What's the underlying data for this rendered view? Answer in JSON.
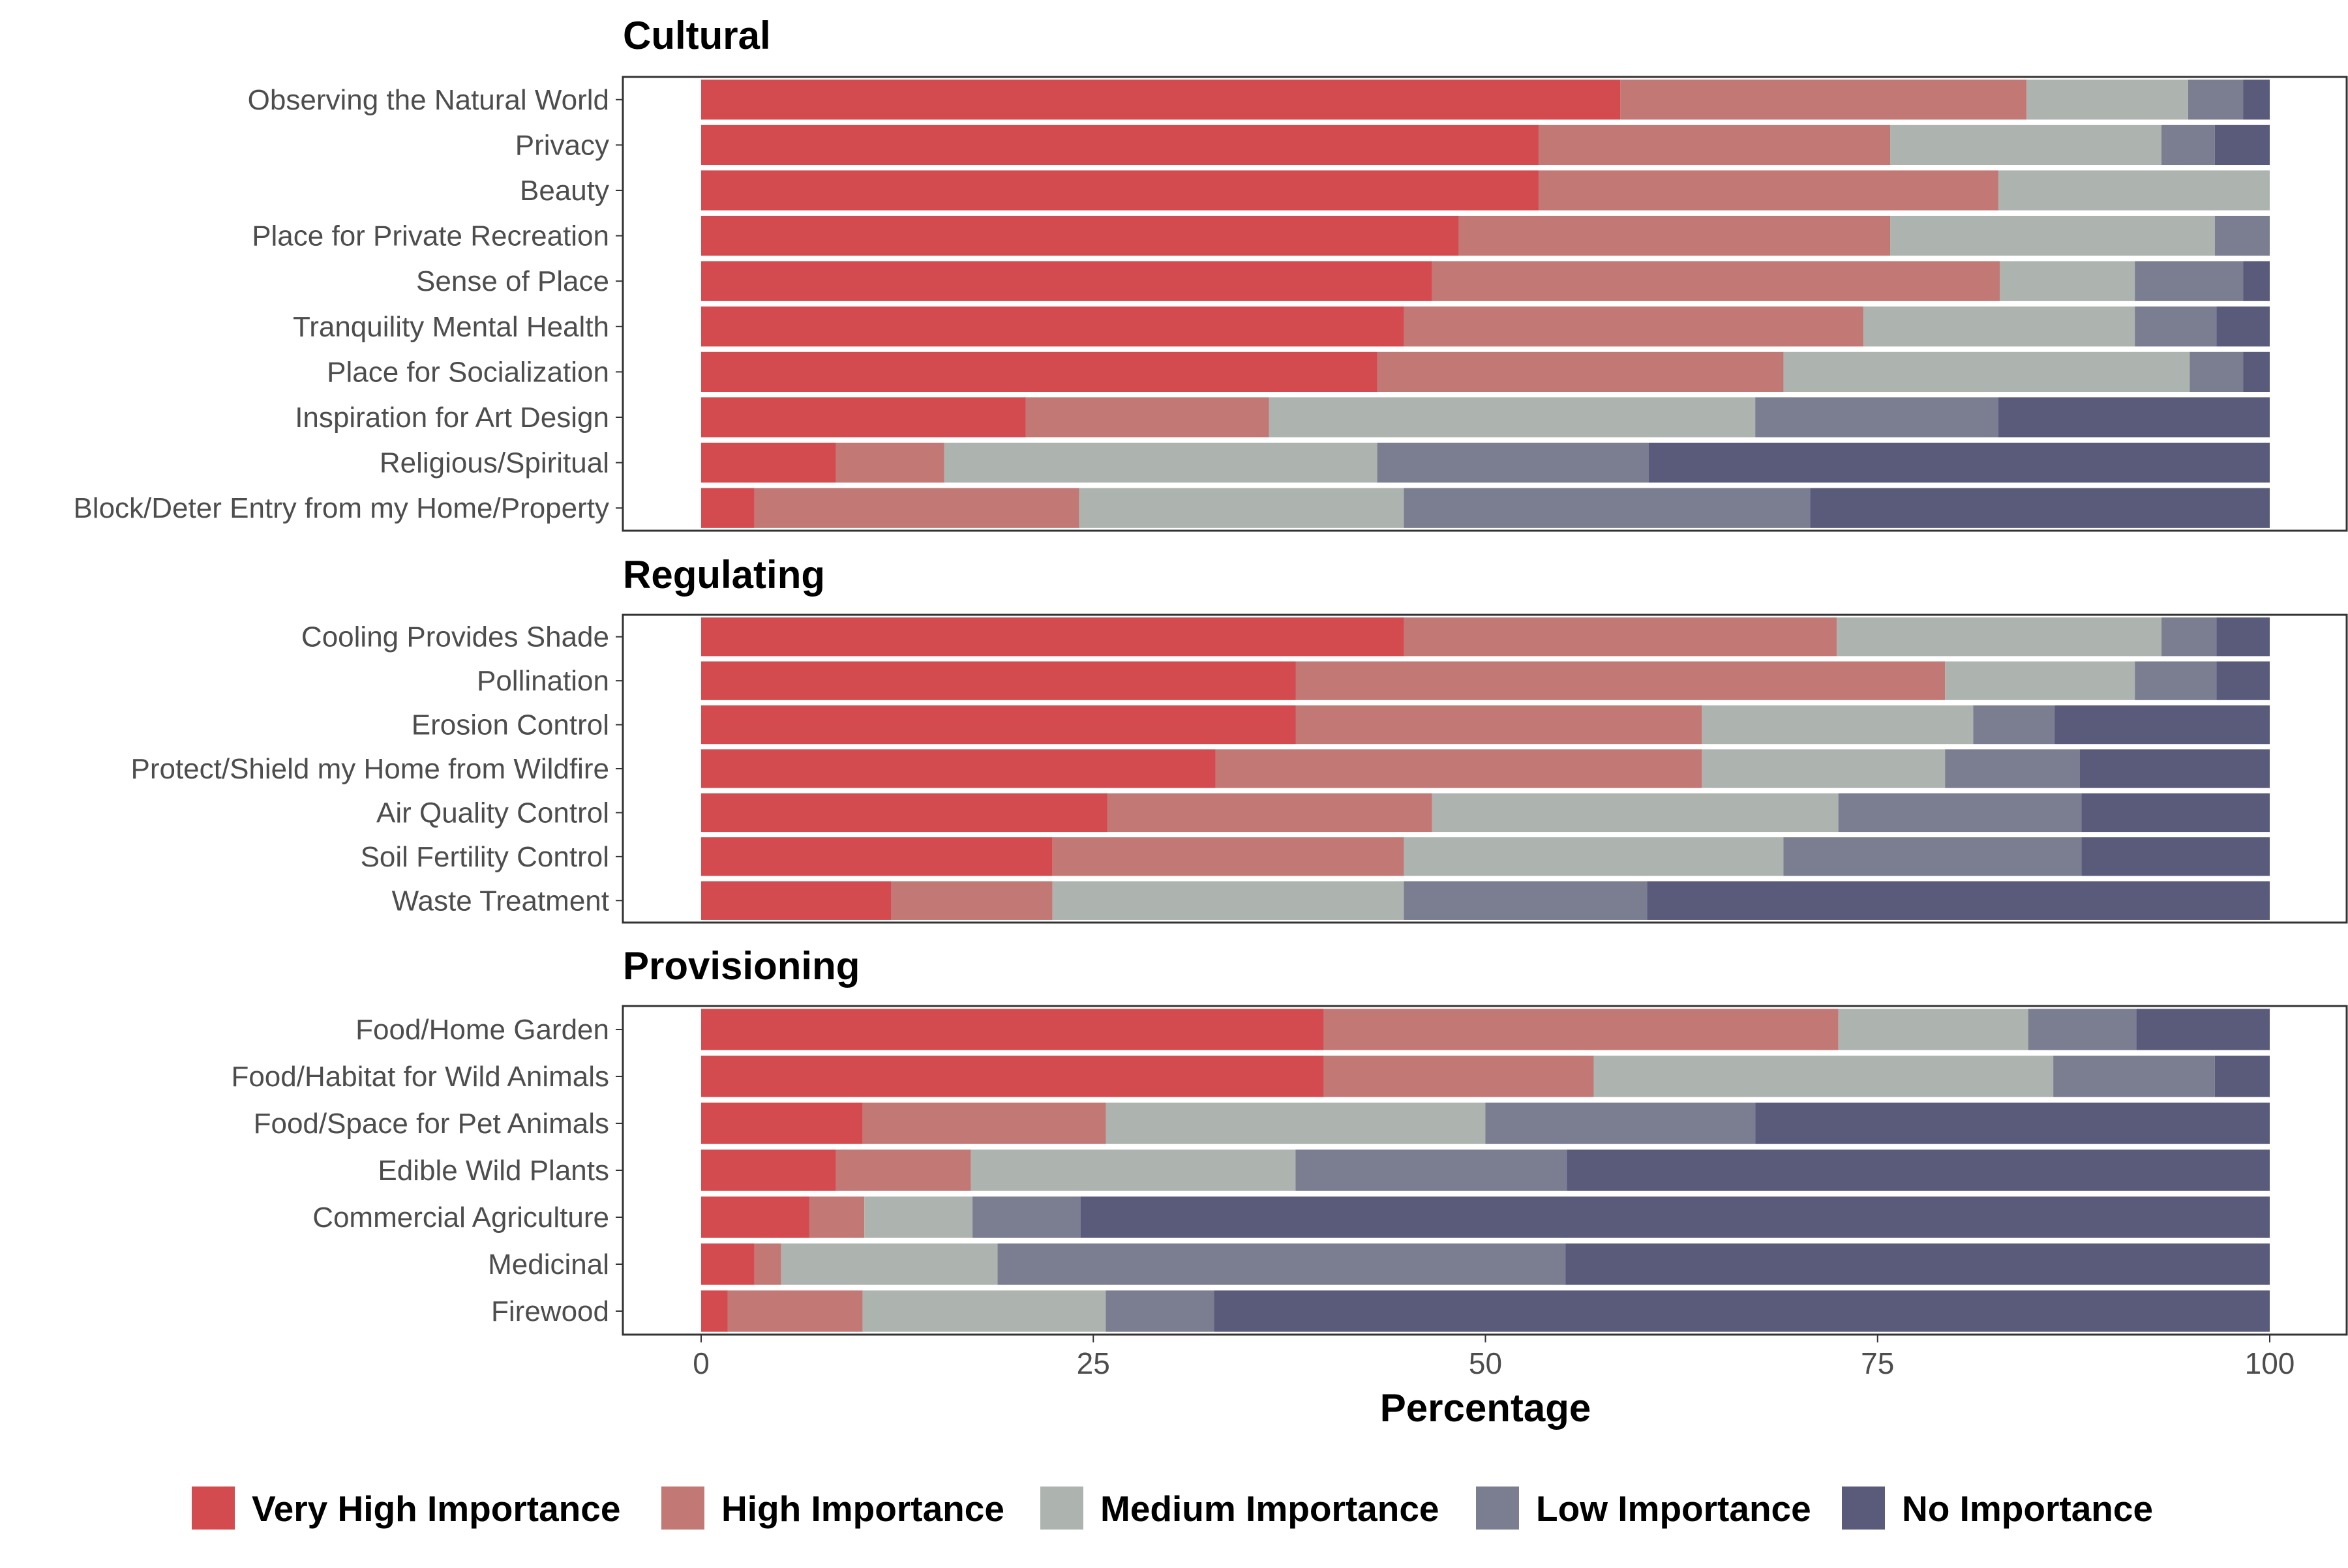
{
  "chart_data": {
    "type": "bar",
    "orientation": "horizontal",
    "stacked": true,
    "xlabel": "Percentage",
    "xlim": [
      0,
      100
    ],
    "xticks": [
      0,
      25,
      50,
      75,
      100
    ],
    "legend_position": "bottom",
    "legend": [
      {
        "name": "Very High Importance",
        "color": "#d34b4e"
      },
      {
        "name": "High Importance",
        "color": "#c27875"
      },
      {
        "name": "Medium Importance",
        "color": "#adb4b0"
      },
      {
        "name": "Low Importance",
        "color": "#7b7d90"
      },
      {
        "name": "No Importance",
        "color": "#5a5b7b"
      }
    ],
    "panels": [
      {
        "title": "Cultural",
        "categories": [
          {
            "label": "Observing the Natural World",
            "values": [
              58.6,
              25.9,
              10.3,
              3.5,
              1.7
            ]
          },
          {
            "label": "Privacy",
            "values": [
              53.4,
              22.4,
              17.3,
              3.4,
              3.5
            ]
          },
          {
            "label": "Beauty",
            "values": [
              53.4,
              29.3,
              17.3,
              0,
              0
            ]
          },
          {
            "label": "Place for Private Recreation",
            "values": [
              48.3,
              27.5,
              20.7,
              3.5,
              0
            ]
          },
          {
            "label": "Sense of Place",
            "values": [
              46.6,
              36.2,
              8.6,
              6.9,
              1.7
            ]
          },
          {
            "label": "Tranquility Mental Health",
            "values": [
              44.8,
              29.3,
              17.3,
              5.2,
              3.4
            ]
          },
          {
            "label": "Place for Socialization",
            "values": [
              43.1,
              25.9,
              25.9,
              3.4,
              1.7
            ]
          },
          {
            "label": "Inspiration for Art Design",
            "values": [
              20.7,
              15.5,
              31.0,
              15.5,
              17.3
            ]
          },
          {
            "label": "Religious/Spiritual",
            "values": [
              8.6,
              6.9,
              27.6,
              17.3,
              39.6
            ]
          },
          {
            "label": "Block/Deter Entry from my Home/Property",
            "values": [
              3.4,
              20.7,
              20.7,
              25.9,
              29.3
            ]
          }
        ]
      },
      {
        "title": "Regulating",
        "categories": [
          {
            "label": "Cooling Provides Shade",
            "values": [
              44.8,
              27.6,
              20.7,
              3.5,
              3.4
            ]
          },
          {
            "label": "Pollination",
            "values": [
              37.9,
              41.4,
              12.1,
              5.2,
              3.4
            ]
          },
          {
            "label": "Erosion Control",
            "values": [
              37.9,
              25.9,
              17.3,
              5.2,
              13.7
            ]
          },
          {
            "label": "Protect/Shield my Home from Wildfire",
            "values": [
              32.8,
              31.0,
              15.5,
              8.6,
              12.1
            ]
          },
          {
            "label": "Air Quality Control",
            "values": [
              25.9,
              20.7,
              25.9,
              15.5,
              12.0
            ]
          },
          {
            "label": "Soil Fertility Control",
            "values": [
              22.4,
              22.4,
              24.2,
              19.0,
              12.0
            ]
          },
          {
            "label": "Waste Treatment",
            "values": [
              12.1,
              10.3,
              22.4,
              15.5,
              39.7
            ]
          }
        ]
      },
      {
        "title": "Provisioning",
        "categories": [
          {
            "label": "Food/Home Garden",
            "values": [
              39.7,
              32.8,
              12.1,
              6.9,
              8.5
            ]
          },
          {
            "label": "Food/Habitat for Wild Animals",
            "values": [
              39.7,
              17.2,
              29.3,
              10.3,
              3.5
            ]
          },
          {
            "label": "Food/Space for Pet Animals",
            "values": [
              10.3,
              15.5,
              24.2,
              17.2,
              32.8
            ]
          },
          {
            "label": "Edible Wild Plants",
            "values": [
              8.6,
              8.6,
              20.7,
              17.3,
              44.8
            ]
          },
          {
            "label": "Commercial Agriculture",
            "values": [
              6.9,
              3.5,
              6.9,
              6.9,
              75.8
            ]
          },
          {
            "label": "Medicinal",
            "values": [
              3.4,
              1.7,
              13.8,
              36.2,
              44.9
            ]
          },
          {
            "label": "Firewood",
            "values": [
              1.7,
              8.6,
              15.5,
              6.9,
              67.3
            ]
          }
        ]
      }
    ]
  }
}
